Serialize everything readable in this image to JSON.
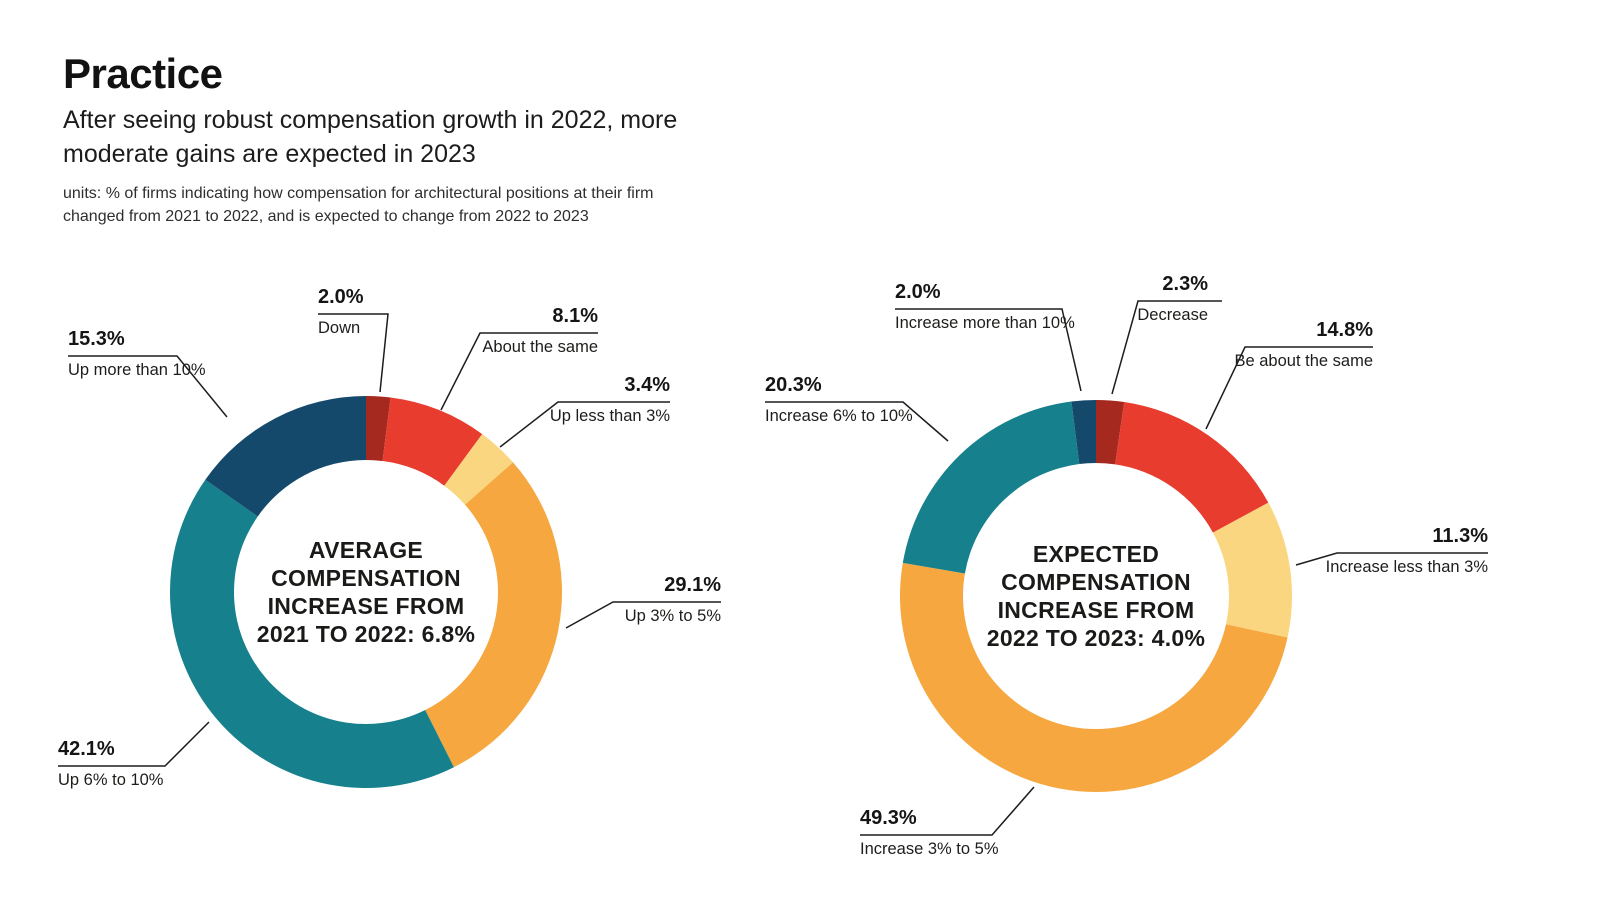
{
  "page": {
    "title": "Practice",
    "subtitle_lines": [
      "After seeing robust compensation growth in 2022, more",
      "moderate gains are expected in 2023"
    ],
    "units_lines": [
      "units: % of firms indicating how compensation for architectural positions at their firm",
      "changed from 2021 to 2022, and is expected to change from 2022 to 2023"
    ]
  },
  "colors": {
    "dark_red": "#a5291e",
    "red": "#e73c2e",
    "light_yellow": "#fbd680",
    "orange": "#f6a73f",
    "teal": "#16808c",
    "navy": "#15496c",
    "callout_line": "#1d1d1b"
  },
  "chart_data": [
    {
      "type": "pie",
      "subtype": "donut",
      "name": "average-compensation-2021-2022",
      "center_label_lines": [
        "AVERAGE",
        "COMPENSATION",
        "INCREASE FROM",
        "2021 TO 2022: 6.8%"
      ],
      "start_angle": "12-oclock-clockwise",
      "segments": [
        {
          "label": "Down",
          "display": "2.0%",
          "value": 2.0,
          "color_key": "dark_red"
        },
        {
          "label": "About the same",
          "display": "8.1%",
          "value": 8.1,
          "color_key": "red"
        },
        {
          "label": "Up less than 3%",
          "display": "3.4%",
          "value": 3.4,
          "color_key": "light_yellow"
        },
        {
          "label": "Up 3% to 5%",
          "display": "29.1%",
          "value": 29.1,
          "color_key": "orange"
        },
        {
          "label": "Up 6% to 10%",
          "display": "42.1%",
          "value": 42.1,
          "color_key": "teal"
        },
        {
          "label": "Up more than 10%",
          "display": "15.3%",
          "value": 15.3,
          "color_key": "navy"
        }
      ]
    },
    {
      "type": "pie",
      "subtype": "donut",
      "name": "expected-compensation-2022-2023",
      "center_label_lines": [
        "EXPECTED",
        "COMPENSATION",
        "INCREASE FROM",
        "2022 TO 2023: 4.0%"
      ],
      "start_angle": "12-oclock-clockwise",
      "segments": [
        {
          "label": "Decrease",
          "display": "2.3%",
          "value": 2.3,
          "color_key": "dark_red"
        },
        {
          "label": "Be about the same",
          "display": "14.8%",
          "value": 14.8,
          "color_key": "red"
        },
        {
          "label": "Increase less than 3%",
          "display": "11.3%",
          "value": 11.3,
          "color_key": "light_yellow"
        },
        {
          "label": "Increase 3% to 5%",
          "display": "49.3%",
          "value": 49.3,
          "color_key": "orange"
        },
        {
          "label": "Increase 6% to 10%",
          "display": "20.3%",
          "value": 20.3,
          "color_key": "teal"
        },
        {
          "label": "Increase more than 10%",
          "display": "2.0%",
          "value": 2.0,
          "color_key": "navy"
        }
      ]
    }
  ]
}
